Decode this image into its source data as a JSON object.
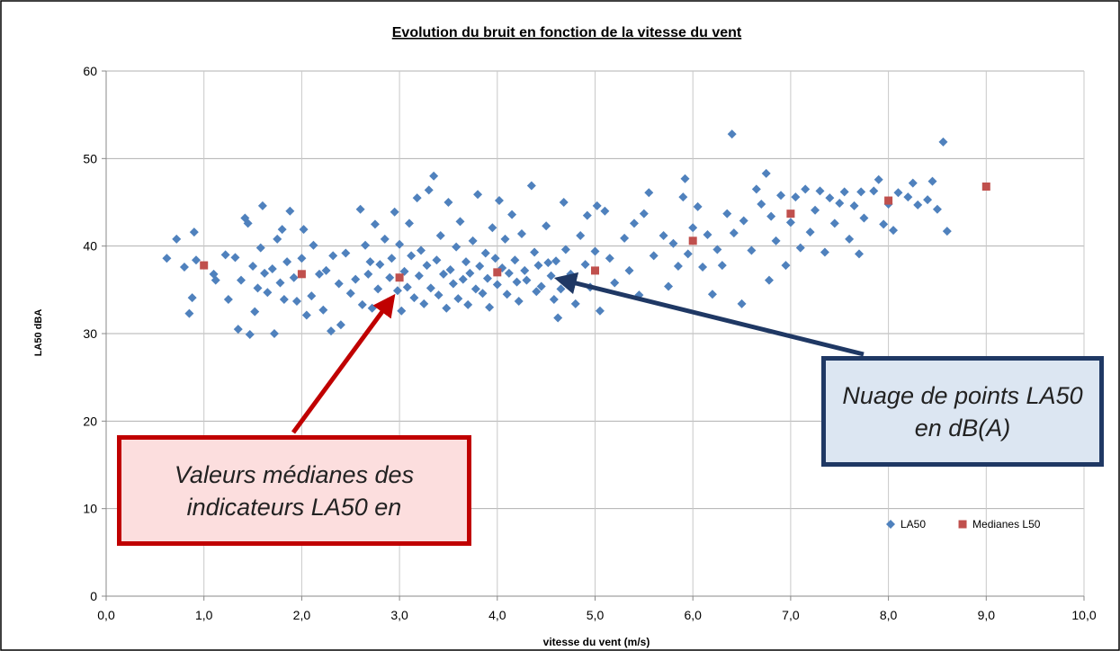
{
  "chart_data": {
    "type": "scatter",
    "title": "Evolution du bruit en fonction de la vitesse du vent",
    "x_label": "vitesse du vent (m/s)",
    "y_label": "LA50 dBA",
    "xlim": [
      0,
      10
    ],
    "ylim": [
      0,
      60
    ],
    "xticks": [
      {
        "value": 0,
        "label": "0,0"
      },
      {
        "value": 1,
        "label": "1,0"
      },
      {
        "value": 2,
        "label": "2,0"
      },
      {
        "value": 3,
        "label": "3,0"
      },
      {
        "value": 4,
        "label": "4,0"
      },
      {
        "value": 5,
        "label": "5,0"
      },
      {
        "value": 6,
        "label": "6,0"
      },
      {
        "value": 7,
        "label": "7,0"
      },
      {
        "value": 8,
        "label": "8,0"
      },
      {
        "value": 9,
        "label": "9,0"
      },
      {
        "value": 10,
        "label": "10,0"
      }
    ],
    "yticks": [
      0,
      10,
      20,
      30,
      40,
      50,
      60
    ],
    "grid": true,
    "legend": "bottom-right",
    "annotations": [
      "Valeurs médianes des indicateurs LA50 en",
      "Nuage de points LA50 en dB(A)"
    ],
    "series": [
      {
        "name": "LA50",
        "color": "#4f81bd",
        "marker": "diamond",
        "x": [
          0.62,
          0.72,
          0.8,
          0.85,
          0.88,
          0.9,
          0.92,
          1.1,
          1.12,
          1.22,
          1.25,
          1.32,
          1.35,
          1.38,
          1.42,
          1.45,
          1.47,
          1.5,
          1.52,
          1.55,
          1.58,
          1.6,
          1.62,
          1.65,
          1.7,
          1.72,
          1.75,
          1.78,
          1.8,
          1.82,
          1.85,
          1.88,
          1.92,
          1.95,
          2.0,
          2.02,
          2.05,
          2.1,
          2.12,
          2.18,
          2.22,
          2.25,
          2.3,
          2.32,
          2.38,
          2.4,
          2.45,
          2.5,
          2.55,
          2.6,
          2.62,
          2.65,
          2.68,
          2.7,
          2.72,
          2.75,
          2.78,
          2.8,
          2.85,
          2.88,
          2.9,
          2.92,
          2.95,
          2.98,
          3.0,
          3.02,
          3.05,
          3.08,
          3.1,
          3.12,
          3.15,
          3.18,
          3.2,
          3.22,
          3.25,
          3.28,
          3.3,
          3.32,
          3.35,
          3.38,
          3.4,
          3.42,
          3.45,
          3.48,
          3.5,
          3.52,
          3.55,
          3.58,
          3.6,
          3.62,
          3.65,
          3.68,
          3.7,
          3.72,
          3.75,
          3.78,
          3.8,
          3.82,
          3.85,
          3.88,
          3.9,
          3.92,
          3.95,
          3.98,
          4.0,
          4.02,
          4.05,
          4.08,
          4.1,
          4.12,
          4.15,
          4.18,
          4.2,
          4.22,
          4.25,
          4.28,
          4.3,
          4.35,
          4.38,
          4.4,
          4.42,
          4.45,
          4.5,
          4.52,
          4.55,
          4.58,
          4.6,
          4.62,
          4.65,
          4.68,
          4.7,
          4.75,
          4.8,
          4.85,
          4.9,
          4.92,
          4.95,
          5.0,
          5.02,
          5.05,
          5.1,
          5.15,
          5.2,
          5.3,
          5.35,
          5.4,
          5.45,
          5.5,
          5.55,
          5.6,
          5.7,
          5.75,
          5.8,
          5.85,
          5.9,
          5.92,
          5.95,
          6.0,
          6.05,
          6.1,
          6.15,
          6.2,
          6.25,
          6.3,
          6.35,
          6.4,
          6.42,
          6.5,
          6.52,
          6.6,
          6.65,
          6.7,
          6.75,
          6.78,
          6.8,
          6.85,
          6.9,
          6.95,
          7.0,
          7.05,
          7.1,
          7.15,
          7.2,
          7.25,
          7.3,
          7.35,
          7.4,
          7.45,
          7.5,
          7.55,
          7.6,
          7.65,
          7.7,
          7.72,
          7.75,
          7.85,
          7.9,
          7.95,
          8.0,
          8.05,
          8.1,
          8.2,
          8.25,
          8.3,
          8.4,
          8.45,
          8.5,
          8.56,
          8.6
        ],
        "values": [
          38.6,
          40.8,
          37.6,
          32.3,
          34.1,
          41.6,
          38.4,
          36.8,
          36.1,
          39,
          33.9,
          38.7,
          30.5,
          36.1,
          43.2,
          42.6,
          29.9,
          37.7,
          32.5,
          35.2,
          39.8,
          44.6,
          36.9,
          34.7,
          37.4,
          30,
          40.8,
          35.8,
          41.9,
          33.9,
          38.2,
          44,
          36.4,
          33.7,
          38.6,
          41.9,
          32.1,
          34.3,
          40.1,
          36.8,
          32.7,
          37.2,
          30.3,
          38.9,
          35.7,
          31,
          39.2,
          34.6,
          36.2,
          44.2,
          33.3,
          40.1,
          36.8,
          38.2,
          32.9,
          42.5,
          35.1,
          37.9,
          40.8,
          33.6,
          36.4,
          38.6,
          43.9,
          34.9,
          40.2,
          32.6,
          37.1,
          35.3,
          42.6,
          38.9,
          34.1,
          45.5,
          36.6,
          39.5,
          33.4,
          37.8,
          46.4,
          35.2,
          48,
          38.4,
          34.4,
          41.2,
          36.8,
          32.9,
          45,
          37.3,
          35.7,
          39.9,
          34,
          42.8,
          36.2,
          38.2,
          33.3,
          36.9,
          40.6,
          35.1,
          45.9,
          37.7,
          34.6,
          39.2,
          36.3,
          33,
          42.1,
          38.6,
          35.6,
          45.2,
          37.5,
          40.8,
          34.5,
          36.9,
          43.6,
          38.4,
          35.9,
          33.7,
          41.4,
          37.2,
          36.1,
          46.9,
          39.3,
          34.8,
          37.8,
          35.4,
          42.3,
          38.1,
          36.6,
          33.9,
          38.3,
          31.8,
          35.1,
          45,
          39.6,
          36.8,
          33.4,
          41.2,
          37.9,
          43.5,
          35.3,
          39.4,
          44.6,
          32.6,
          44,
          38.6,
          35.8,
          40.9,
          37.2,
          42.6,
          34.4,
          43.7,
          46.1,
          38.9,
          41.2,
          35.4,
          40.3,
          37.7,
          45.6,
          47.7,
          39.1,
          42.1,
          44.5,
          37.6,
          41.3,
          34.5,
          39.6,
          37.8,
          43.7,
          52.8,
          41.5,
          33.4,
          42.9,
          39.5,
          46.5,
          44.8,
          48.3,
          36.1,
          43.4,
          40.6,
          45.8,
          37.8,
          42.7,
          45.6,
          39.8,
          46.5,
          41.6,
          44.1,
          46.3,
          39.3,
          45.5,
          42.6,
          44.9,
          46.2,
          40.8,
          44.6,
          39.1,
          46.2,
          43.2,
          46.3,
          47.6,
          42.5,
          44.8,
          41.8,
          46.1,
          45.6,
          47.2,
          44.7,
          45.3,
          47.4,
          44.2,
          51.9,
          41.7
        ]
      },
      {
        "name": "Medianes L50",
        "color": "#c0504d",
        "marker": "square",
        "x": [
          1,
          2,
          3,
          4,
          5,
          6,
          7,
          8,
          9
        ],
        "values": [
          37.8,
          36.8,
          36.4,
          37,
          37.2,
          40.6,
          43.7,
          45.2,
          46.8
        ]
      }
    ]
  }
}
